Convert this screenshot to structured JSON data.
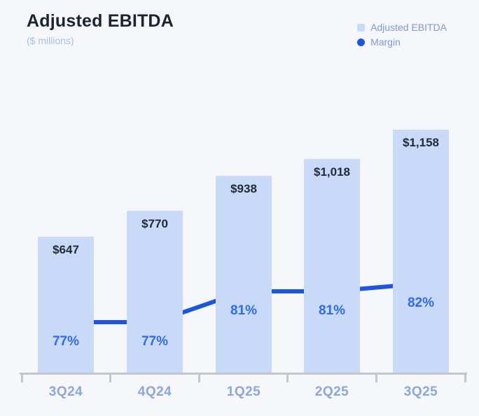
{
  "header": {
    "title": "Adjusted EBITDA",
    "subtitle": "($ millions)"
  },
  "legend": {
    "items": [
      {
        "label": "Adjusted EBITDA",
        "swatch": "square-icon"
      },
      {
        "label": "Margin",
        "swatch": "dot-icon"
      }
    ]
  },
  "colors": {
    "background": "#f6f7fa",
    "bar_fill": "#c9daf8",
    "line": "#1d54e0",
    "percent_label": "#2f6ae8",
    "x_axis_label": "#8ba6d8",
    "value_label": "#212b38",
    "title": "#1b2532",
    "subtitle": "#a9bfe3",
    "legend_text": "#7e99d0",
    "axis": "#c3c6cc"
  },
  "chart_data": {
    "type": "bar",
    "combo": "bar + line overlay",
    "title": "Adjusted EBITDA",
    "subtitle": "($ millions)",
    "categories": [
      "3Q24",
      "4Q24",
      "1Q25",
      "2Q25",
      "3Q25"
    ],
    "series": [
      {
        "name": "Adjusted EBITDA",
        "type": "bar",
        "unit": "$ millions",
        "values": [
          647,
          770,
          938,
          1018,
          1158
        ],
        "labels": [
          "$647",
          "$770",
          "$938",
          "$1,018",
          "$1,158"
        ]
      },
      {
        "name": "Margin",
        "type": "line",
        "unit": "%",
        "values": [
          77,
          77,
          81,
          81,
          82
        ],
        "labels": [
          "77%",
          "77%",
          "81%",
          "81%",
          "82%"
        ]
      }
    ],
    "xlabel": "",
    "ylabel": "",
    "ylim": [
      0,
      1300
    ],
    "grid": false,
    "legend_position": "top-right",
    "value_labels_position": "inside-bar-top",
    "percent_labels_position": "below-line-point"
  }
}
